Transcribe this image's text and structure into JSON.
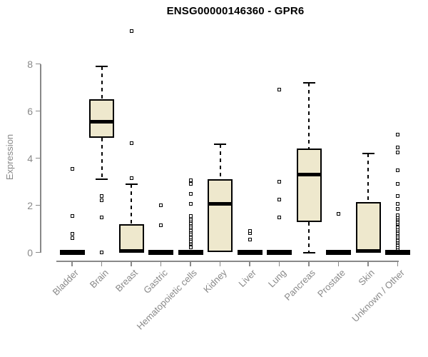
{
  "title": "ENSG00000146360 - GPR6",
  "chart_data": {
    "type": "boxplot",
    "title": "ENSG00000146360 - GPR6",
    "xlabel": "",
    "ylabel": "Expression",
    "ylim": [
      0,
      9.6
    ],
    "yticks": [
      0,
      2,
      4,
      6,
      8
    ],
    "grid": false,
    "legend": "none",
    "colors": {
      "box_fill": "#EEE8CD",
      "box_border": "#000000",
      "axis": "#898989",
      "tick_label_gray": "#898989",
      "title_color": "#000000"
    },
    "categories": [
      "Bladder",
      "Brain",
      "Breast",
      "Gastric",
      "Hematopoietic cells",
      "Kidney",
      "Liver",
      "Lung",
      "Pancreas",
      "Prostate",
      "Skin",
      "Unknown / Other"
    ],
    "series": [
      {
        "name": "Bladder",
        "min": 0,
        "q1": 0,
        "median": 0,
        "q3": 0,
        "max": 0,
        "outliers": [
          0.6,
          0.8,
          1.55,
          3.55
        ]
      },
      {
        "name": "Brain",
        "min": 3.1,
        "q1": 4.85,
        "median": 5.55,
        "q3": 6.5,
        "max": 7.9,
        "outliers": [
          0,
          1.5,
          2.2,
          2.4
        ]
      },
      {
        "name": "Breast",
        "min": 0,
        "q1": 0,
        "median": 0.05,
        "q3": 1.2,
        "max": 2.9,
        "outliers": [
          3.15,
          4.65,
          9.4
        ]
      },
      {
        "name": "Gastric",
        "min": 0,
        "q1": 0,
        "median": 0,
        "q3": 0,
        "max": 0,
        "outliers": [
          1.15,
          2.0
        ]
      },
      {
        "name": "Hematopoietic cells",
        "min": 0,
        "q1": 0,
        "median": 0,
        "q3": 0,
        "max": 0,
        "outliers": [
          0.2,
          0.35,
          0.42,
          0.5,
          0.58,
          0.65,
          0.72,
          0.8,
          0.88,
          0.95,
          1.02,
          1.1,
          1.18,
          1.25,
          1.32,
          1.4,
          1.48,
          1.55,
          2.05,
          2.5,
          2.9,
          3.05
        ]
      },
      {
        "name": "Kidney",
        "min": 0,
        "q1": 0,
        "median": 2.05,
        "q3": 3.1,
        "max": 4.6,
        "outliers": []
      },
      {
        "name": "Liver",
        "min": 0,
        "q1": 0,
        "median": 0,
        "q3": 0,
        "max": 0,
        "outliers": [
          0.55,
          0.82,
          0.92
        ]
      },
      {
        "name": "Lung",
        "min": 0,
        "q1": 0,
        "median": 0,
        "q3": 0,
        "max": 0,
        "outliers": [
          1.5,
          2.25,
          3.0,
          6.9
        ]
      },
      {
        "name": "Pancreas",
        "min": 0,
        "q1": 1.3,
        "median": 3.3,
        "q3": 4.4,
        "max": 7.2,
        "outliers": []
      },
      {
        "name": "Prostate",
        "min": 0,
        "q1": 0,
        "median": 0,
        "q3": 0,
        "max": 0,
        "outliers": [
          1.65
        ]
      },
      {
        "name": "Skin",
        "min": 0,
        "q1": 0,
        "median": 0.05,
        "q3": 2.15,
        "max": 4.2,
        "outliers": []
      },
      {
        "name": "Unknown / Other",
        "min": 0,
        "q1": 0,
        "median": 0,
        "q3": 0,
        "max": 0,
        "outliers": [
          0.15,
          0.22,
          0.3,
          0.38,
          0.45,
          0.52,
          0.6,
          0.68,
          0.75,
          0.82,
          0.9,
          0.98,
          1.05,
          1.2,
          1.28,
          1.35,
          1.42,
          1.5,
          1.58,
          1.85,
          2.05,
          2.4,
          2.9,
          3.5,
          4.25,
          4.45,
          5.0
        ]
      }
    ]
  }
}
